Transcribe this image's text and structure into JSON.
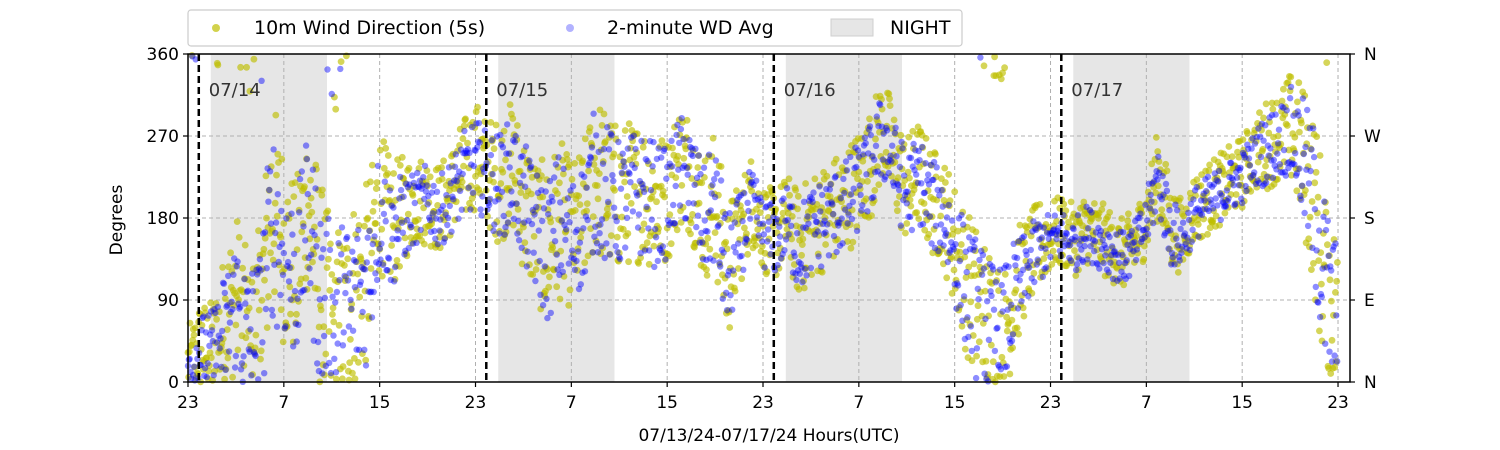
{
  "chart_data": {
    "type": "scatter",
    "ylabel": "Degrees",
    "xlabel": "07/13/24-07/17/24  Hours(UTC)",
    "ylim": [
      0,
      360
    ],
    "xlim_hours": [
      0,
      97
    ],
    "y_ticks": [
      0,
      90,
      180,
      270,
      360
    ],
    "right_ticks": [
      {
        "value": 0,
        "label": "N"
      },
      {
        "value": 90,
        "label": "E"
      },
      {
        "value": 180,
        "label": "S"
      },
      {
        "value": 270,
        "label": "W"
      },
      {
        "value": 360,
        "label": "N"
      }
    ],
    "x_ticks": [
      {
        "hour": 0,
        "label": "23"
      },
      {
        "hour": 8,
        "label": "7"
      },
      {
        "hour": 16,
        "label": "15"
      },
      {
        "hour": 24,
        "label": "23"
      },
      {
        "hour": 32,
        "label": "7"
      },
      {
        "hour": 40,
        "label": "15"
      },
      {
        "hour": 48,
        "label": "23"
      },
      {
        "hour": 56,
        "label": "7"
      },
      {
        "hour": 64,
        "label": "15"
      },
      {
        "hour": 72,
        "label": "23"
      },
      {
        "hour": 80,
        "label": "7"
      },
      {
        "hour": 88,
        "label": "15"
      },
      {
        "hour": 96,
        "label": "23"
      }
    ],
    "day_markers": [
      {
        "hour": 0.9,
        "label": "07/14"
      },
      {
        "hour": 24.9,
        "label": "07/15"
      },
      {
        "hour": 48.9,
        "label": "07/16"
      },
      {
        "hour": 72.9,
        "label": "07/17"
      }
    ],
    "night_periods": [
      [
        1.9,
        11.6
      ],
      [
        25.9,
        35.6
      ],
      [
        49.9,
        59.6
      ],
      [
        73.9,
        83.6
      ]
    ],
    "grid": true,
    "legend": {
      "placement": "top-left outside",
      "entries": [
        "10m Wind Direction (5s)",
        "2-minute WD Avg",
        "NIGHT"
      ]
    },
    "colors": {
      "wd5s": "#bfbf00",
      "wd2min": "#0000ff",
      "night": "#d9d9d9"
    },
    "series": [
      {
        "name": "10m Wind Direction (5s)",
        "hours": [
          0,
          1,
          2,
          3,
          4,
          5,
          6,
          7,
          8,
          9,
          10,
          11,
          12,
          13,
          14,
          15,
          16,
          17,
          18,
          19,
          20,
          21,
          22,
          23,
          24,
          25,
          26,
          27,
          28,
          29,
          30,
          31,
          32,
          33,
          34,
          35,
          36,
          37,
          38,
          39,
          40,
          41,
          42,
          43,
          44,
          45,
          46,
          47,
          48,
          49,
          50,
          51,
          52,
          53,
          54,
          55,
          56,
          57,
          58,
          59,
          60,
          61,
          62,
          63,
          64,
          65,
          66,
          67,
          68,
          69,
          70,
          71,
          72,
          73,
          74,
          75,
          76,
          77,
          78,
          79,
          80,
          81,
          82,
          83,
          84,
          85,
          86,
          87,
          88,
          89,
          90,
          91,
          92,
          93,
          94,
          95,
          96
        ],
        "values": [
          20,
          40,
          30,
          60,
          100,
          40,
          60,
          200,
          150,
          120,
          200,
          110,
          50,
          60,
          100,
          120,
          200,
          170,
          190,
          200,
          200,
          190,
          210,
          230,
          250,
          230,
          220,
          240,
          200,
          170,
          150,
          180,
          160,
          180,
          230,
          210,
          200,
          210,
          210,
          200,
          200,
          240,
          230,
          180,
          200,
          120,
          160,
          200,
          170,
          160,
          180,
          150,
          170,
          180,
          190,
          200,
          220,
          240,
          280,
          240,
          210,
          230,
          200,
          190,
          150,
          110,
          80,
          60,
          50,
          100,
          130,
          150,
          160,
          165,
          155,
          170,
          160,
          150,
          140,
          150,
          180,
          230,
          170,
          160,
          190,
          200,
          210,
          220,
          230,
          250,
          260,
          270,
          280,
          250,
          200,
          100,
          60
        ],
        "spread": [
          40,
          50,
          60,
          80,
          90,
          100,
          110,
          120,
          110,
          100,
          100,
          120,
          120,
          120,
          110,
          100,
          80,
          70,
          60,
          50,
          50,
          50,
          50,
          60,
          60,
          60,
          70,
          70,
          80,
          80,
          90,
          90,
          80,
          80,
          90,
          90,
          80,
          80,
          80,
          80,
          70,
          70,
          70,
          70,
          80,
          80,
          60,
          50,
          50,
          50,
          50,
          60,
          60,
          60,
          60,
          60,
          60,
          60,
          60,
          60,
          60,
          60,
          60,
          60,
          70,
          80,
          90,
          90,
          80,
          70,
          50,
          50,
          40,
          40,
          40,
          40,
          40,
          40,
          40,
          40,
          40,
          50,
          50,
          40,
          40,
          40,
          40,
          40,
          40,
          40,
          50,
          50,
          60,
          80,
          100,
          120,
          100
        ]
      },
      {
        "name": "2-minute WD Avg",
        "hours": [
          0,
          1,
          2,
          3,
          4,
          5,
          6,
          7,
          8,
          9,
          10,
          11,
          12,
          13,
          14,
          15,
          16,
          17,
          18,
          19,
          20,
          21,
          22,
          23,
          24,
          25,
          26,
          27,
          28,
          29,
          30,
          31,
          32,
          33,
          34,
          35,
          36,
          37,
          38,
          39,
          40,
          41,
          42,
          43,
          44,
          45,
          46,
          47,
          48,
          49,
          50,
          51,
          52,
          53,
          54,
          55,
          56,
          57,
          58,
          59,
          60,
          61,
          62,
          63,
          64,
          65,
          66,
          67,
          68,
          69,
          70,
          71,
          72,
          73,
          74,
          75,
          76,
          77,
          78,
          79,
          80,
          81,
          82,
          83,
          84,
          85,
          86,
          87,
          88,
          89,
          90,
          91,
          92,
          93,
          94,
          95,
          96
        ],
        "values": [
          20,
          35,
          30,
          50,
          90,
          40,
          50,
          180,
          140,
          110,
          180,
          100,
          60,
          70,
          90,
          110,
          190,
          160,
          180,
          190,
          200,
          185,
          205,
          225,
          240,
          225,
          215,
          230,
          195,
          165,
          145,
          175,
          155,
          175,
          225,
          205,
          195,
          205,
          205,
          195,
          195,
          235,
          225,
          175,
          195,
          115,
          155,
          195,
          165,
          155,
          175,
          145,
          165,
          175,
          185,
          195,
          215,
          235,
          270,
          235,
          205,
          225,
          195,
          185,
          145,
          105,
          75,
          55,
          55,
          95,
          125,
          145,
          155,
          160,
          150,
          165,
          155,
          145,
          135,
          145,
          175,
          225,
          165,
          155,
          185,
          195,
          205,
          215,
          225,
          245,
          255,
          265,
          275,
          245,
          195,
          95,
          60
        ],
        "spread": [
          30,
          40,
          50,
          70,
          80,
          90,
          100,
          110,
          100,
          90,
          90,
          110,
          110,
          110,
          100,
          90,
          70,
          60,
          50,
          40,
          40,
          40,
          40,
          50,
          50,
          50,
          60,
          60,
          70,
          70,
          80,
          80,
          70,
          70,
          80,
          80,
          70,
          70,
          70,
          70,
          60,
          60,
          60,
          60,
          70,
          70,
          50,
          40,
          40,
          40,
          40,
          50,
          50,
          50,
          50,
          50,
          50,
          50,
          50,
          50,
          50,
          50,
          50,
          50,
          60,
          70,
          80,
          80,
          70,
          60,
          40,
          40,
          30,
          30,
          30,
          30,
          30,
          30,
          30,
          30,
          30,
          40,
          40,
          30,
          30,
          30,
          30,
          30,
          30,
          30,
          40,
          40,
          50,
          70,
          90,
          110,
          90
        ]
      }
    ]
  }
}
